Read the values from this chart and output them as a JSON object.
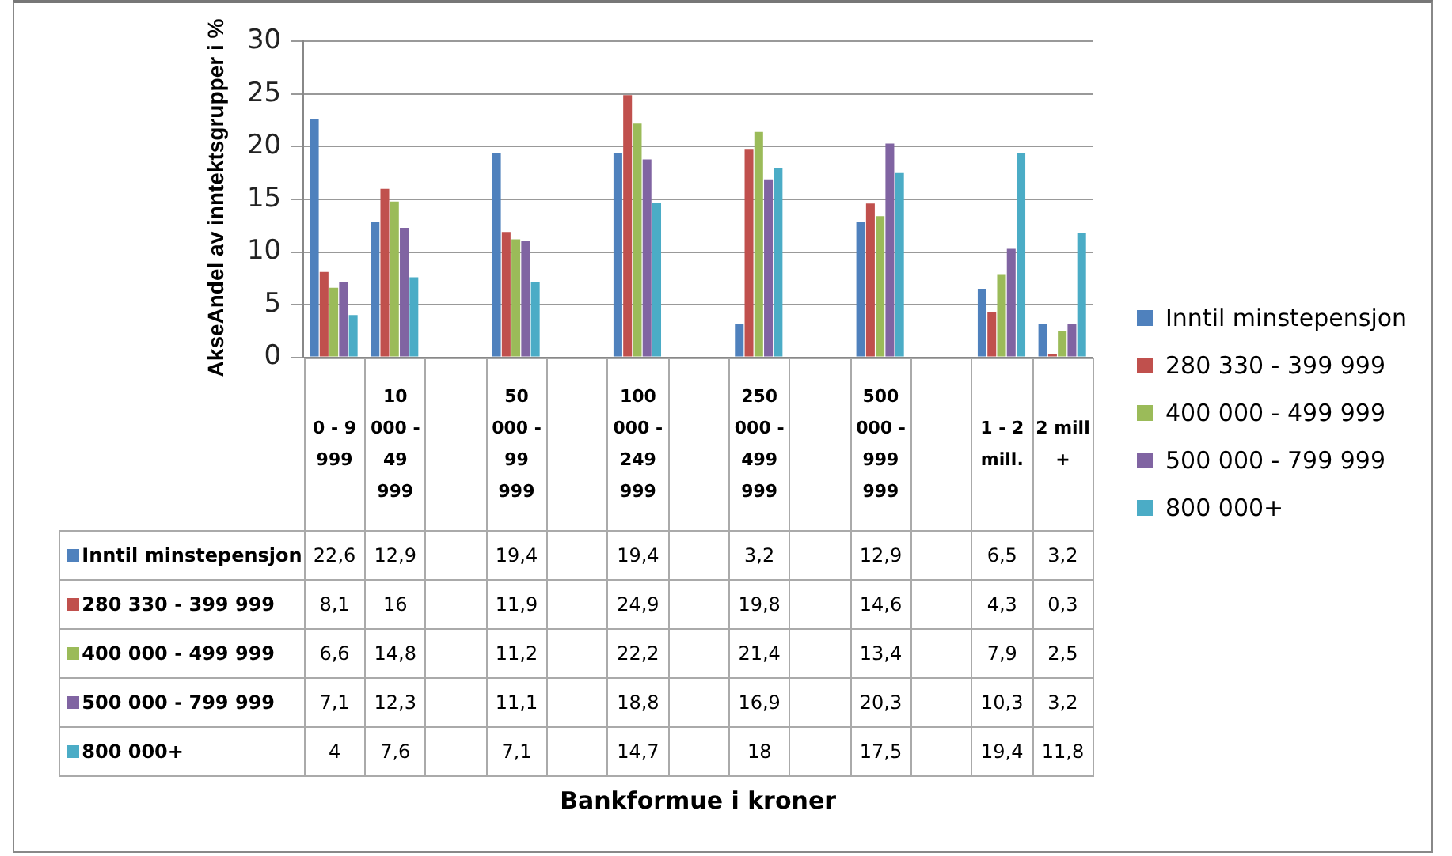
{
  "chart_data": {
    "type": "bar",
    "annotations": [
      "Bankformue i kroner"
    ],
    "ylabel": "AkseAndel av inntektsgrupper i %",
    "categories": [
      "0 - 9 999",
      "10 000 - 49 999",
      null,
      "50 000 - 99 999",
      null,
      "100 000 - 249 999",
      null,
      "250 000 - 499 999",
      null,
      "500 000 - 999 999",
      null,
      "1 - 2 mill.",
      "2 mill +"
    ],
    "series": [
      {
        "name": "Inntil minstepensjon",
        "color": "#4f81bd",
        "values": [
          22.6,
          12.9,
          null,
          19.4,
          null,
          19.4,
          null,
          3.2,
          null,
          12.9,
          null,
          6.5,
          3.2
        ],
        "value_labels": [
          "22,6",
          "12,9",
          null,
          "19,4",
          null,
          "19,4",
          null,
          "3,2",
          null,
          "12,9",
          null,
          "6,5",
          "3,2"
        ]
      },
      {
        "name": "280 330 - 399 999",
        "color": "#c0504d",
        "values": [
          8.1,
          16,
          null,
          11.9,
          null,
          24.9,
          null,
          19.8,
          null,
          14.6,
          null,
          4.3,
          0.3
        ],
        "value_labels": [
          "8,1",
          "16",
          null,
          "11,9",
          null,
          "24,9",
          null,
          "19,8",
          null,
          "14,6",
          null,
          "4,3",
          "0,3"
        ]
      },
      {
        "name": "400 000 - 499 999",
        "color": "#9bbb59",
        "values": [
          6.6,
          14.8,
          null,
          11.2,
          null,
          22.2,
          null,
          21.4,
          null,
          13.4,
          null,
          7.9,
          2.5
        ],
        "value_labels": [
          "6,6",
          "14,8",
          null,
          "11,2",
          null,
          "22,2",
          null,
          "21,4",
          null,
          "13,4",
          null,
          "7,9",
          "2,5"
        ]
      },
      {
        "name": "500 000 - 799 999",
        "color": "#8064a2",
        "values": [
          7.1,
          12.3,
          null,
          11.1,
          null,
          18.8,
          null,
          16.9,
          null,
          20.3,
          null,
          10.3,
          3.2
        ],
        "value_labels": [
          "7,1",
          "12,3",
          null,
          "11,1",
          null,
          "18,8",
          null,
          "16,9",
          null,
          "20,3",
          null,
          "10,3",
          "3,2"
        ]
      },
      {
        "name": "800 000+",
        "color": "#4bacc6",
        "values": [
          4,
          7.6,
          null,
          7.1,
          null,
          14.7,
          null,
          18,
          null,
          17.5,
          null,
          19.4,
          11.8
        ],
        "value_labels": [
          "4",
          "7,6",
          null,
          "7,1",
          null,
          "14,7",
          null,
          "18",
          null,
          "17,5",
          null,
          "19,4",
          "11,8"
        ]
      }
    ],
    "ylim": [
      0,
      30
    ],
    "yticks": [
      0,
      5,
      10,
      15,
      20,
      25,
      30
    ],
    "grid": "y",
    "legend": "right"
  }
}
